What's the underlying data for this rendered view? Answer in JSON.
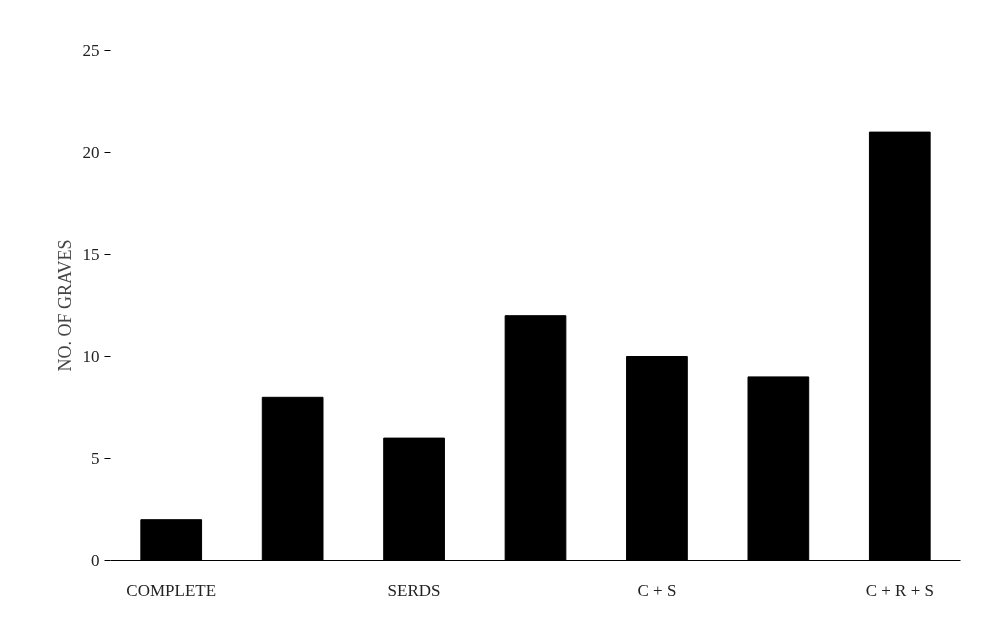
{
  "chart_data": {
    "type": "bar",
    "ylabel": "NO. OF GRAVES",
    "categories": [
      "COMPLETE",
      null,
      "SERDS",
      null,
      "C + S",
      null,
      "C + R + S"
    ],
    "values": [
      2,
      8,
      6,
      12,
      10,
      9,
      21
    ],
    "color": "#000000",
    "ylim": [
      0,
      25
    ],
    "yticks": [
      0,
      5,
      10,
      15,
      20,
      25
    ],
    "grid": false
  }
}
